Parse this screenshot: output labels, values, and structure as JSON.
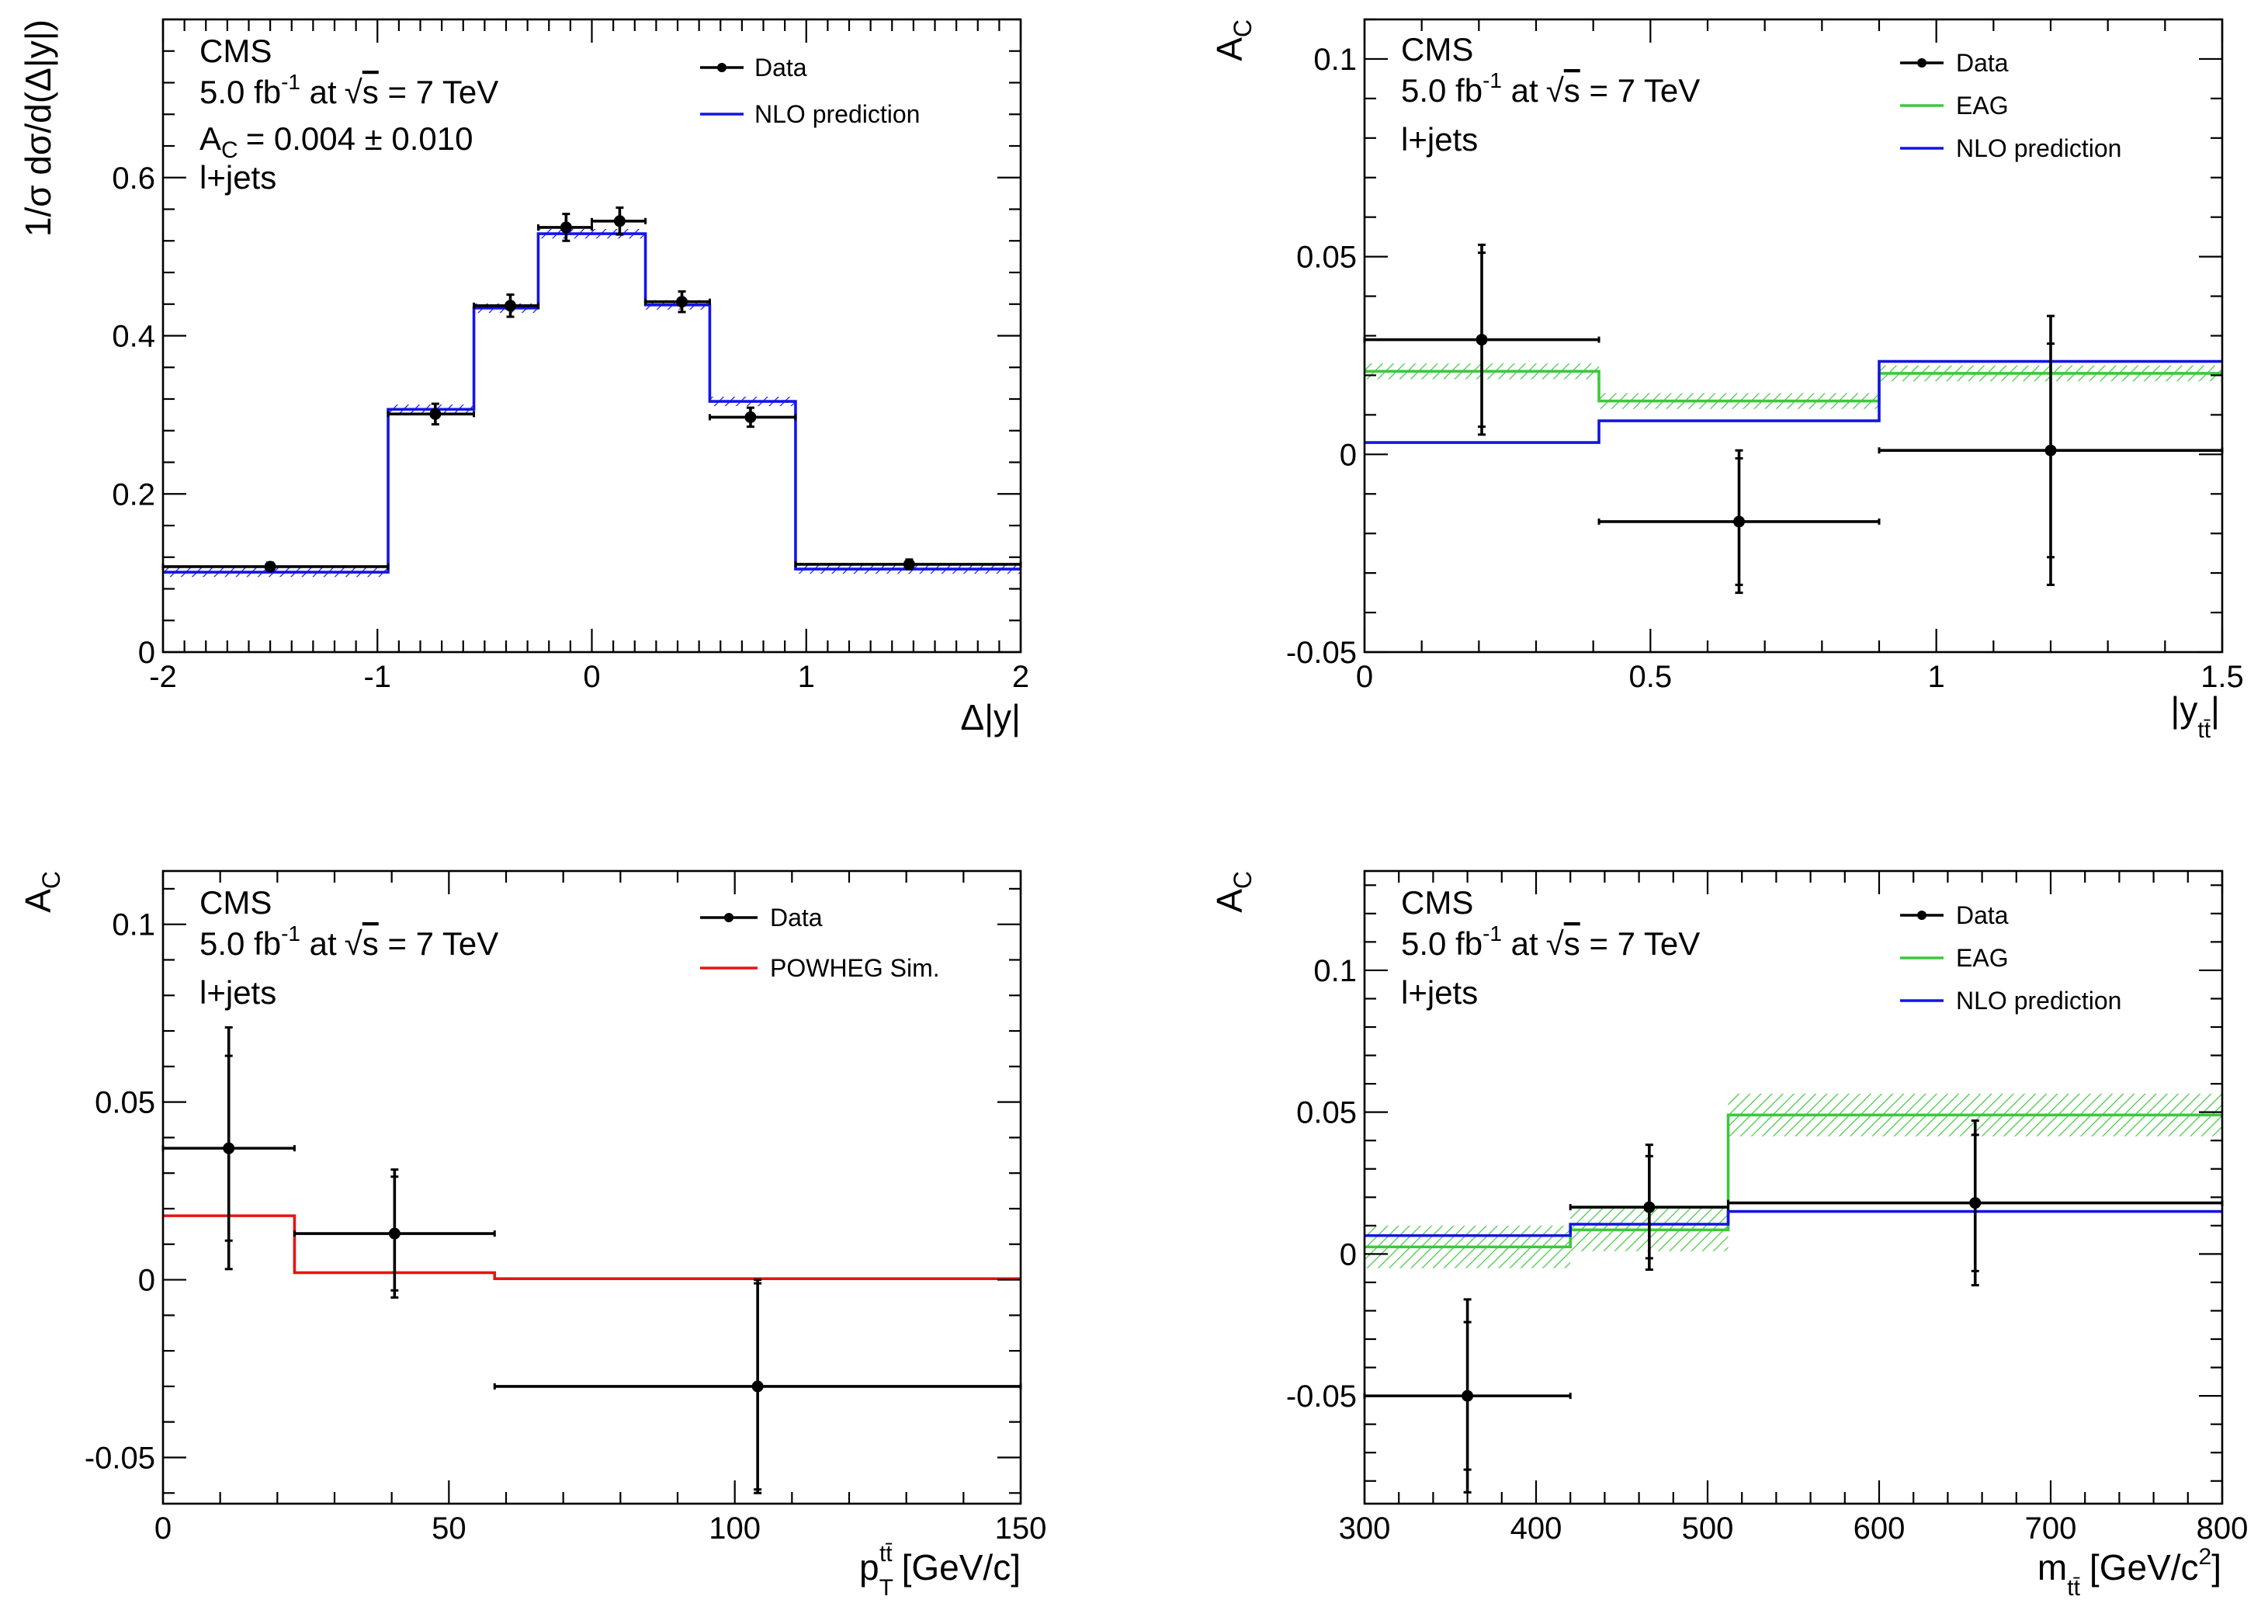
{
  "chart_data": [
    {
      "type": "histogram",
      "xlabel": "Δ|y|",
      "ylabel": "1/σ dσ/d(Δ|y|)",
      "xlim": [
        -2,
        2
      ],
      "ylim": [
        0,
        0.8
      ],
      "xticks": [
        "-2",
        "-1",
        "0",
        "1",
        "2"
      ],
      "yticks": [
        "0",
        "0.2",
        "0.4",
        "0.6"
      ],
      "ytick_values": [
        0,
        0.2,
        0.4,
        0.6
      ],
      "grid": false,
      "legend_position": "top-right",
      "text": {
        "line1": "CMS",
        "lumi": "5.0 fb",
        "lumi_sup": "-1",
        "energy_pre": "at",
        "energy_root": "s",
        "energy_post": "= 7 TeV",
        "ac_a": "A",
        "ac_sub": "C",
        "ac_val": "= 0.004 ± 0.010",
        "channel": "l+jets"
      },
      "bin_edges": [
        -2,
        -0.95,
        -0.55,
        -0.25,
        0,
        0.25,
        0.55,
        0.95,
        2
      ],
      "series": [
        {
          "name": "Data",
          "kind": "points",
          "color": "#000000",
          "x": [
            -1.5,
            -0.73,
            -0.38,
            -0.12,
            0.13,
            0.42,
            0.74,
            1.48
          ],
          "y": [
            0.108,
            0.301,
            0.438,
            0.537,
            0.545,
            0.443,
            0.297,
            0.111
          ],
          "err": [
            0.005,
            0.013,
            0.014,
            0.017,
            0.017,
            0.013,
            0.012,
            0.006
          ]
        },
        {
          "name": "NLO prediction",
          "kind": "step",
          "color": "#1414e6",
          "values": [
            0.101,
            0.307,
            0.435,
            0.529,
            0.529,
            0.439,
            0.317,
            0.105
          ],
          "band": 0.006
        }
      ]
    },
    {
      "type": "histogram",
      "xlabel": "|y",
      "xlabel_sub": "tt̄",
      "xlabel_close": "|",
      "ylabel": "A",
      "ylabel_sub": "C",
      "xlim": [
        0,
        1.5
      ],
      "ylim": [
        -0.05,
        0.11
      ],
      "xticks": [
        "0",
        "0.5",
        "1",
        "1.5"
      ],
      "xtick_values": [
        0,
        0.5,
        1,
        1.5
      ],
      "yticks": [
        "-0.05",
        "0",
        "0.05",
        "0.1"
      ],
      "ytick_values": [
        -0.05,
        0,
        0.05,
        0.1
      ],
      "grid": false,
      "legend_position": "top-right",
      "text": {
        "line1": "CMS",
        "lumi": "5.0 fb",
        "lumi_sup": "-1",
        "energy_pre": "at",
        "energy_root": "s",
        "energy_post": "= 7 TeV",
        "channel": "l+jets"
      },
      "bin_edges": [
        0,
        0.41,
        0.9,
        1.5
      ],
      "series": [
        {
          "name": "Data",
          "kind": "points",
          "color": "#000000",
          "x": [
            0.205,
            0.655,
            1.2
          ],
          "y": [
            0.029,
            -0.017,
            0.001
          ],
          "err": [
            0.024,
            0.018,
            0.034
          ],
          "err_stat": [
            0.022,
            0.016,
            0.027
          ]
        },
        {
          "name": "EAG",
          "kind": "step",
          "color": "#3cc83c",
          "values": [
            0.021,
            0.0135,
            0.0205
          ],
          "band": 0.002
        },
        {
          "name": "NLO prediction",
          "kind": "step",
          "color": "#1414e6",
          "values": [
            0.003,
            0.0085,
            0.0235
          ]
        }
      ]
    },
    {
      "type": "histogram",
      "xlabel": "p",
      "xlabel_sub": "T",
      "xlabel_sup": "tt̄",
      "xlabel_unit": "[GeV/c]",
      "ylabel": "A",
      "ylabel_sub": "C",
      "xlim": [
        0,
        150
      ],
      "ylim": [
        -0.063,
        0.115
      ],
      "xticks": [
        "0",
        "50",
        "100",
        "150"
      ],
      "xtick_values": [
        0,
        50,
        100,
        150
      ],
      "yticks": [
        "-0.05",
        "0",
        "0.05",
        "0.1"
      ],
      "ytick_values": [
        -0.05,
        0,
        0.05,
        0.1
      ],
      "grid": false,
      "legend_position": "top-right",
      "text": {
        "line1": "CMS",
        "lumi": "5.0 fb",
        "lumi_sup": "-1",
        "energy_pre": "at",
        "energy_root": "s",
        "energy_post": "= 7 TeV",
        "channel": "l+jets"
      },
      "bin_edges": [
        0,
        23,
        58,
        150
      ],
      "series": [
        {
          "name": "Data",
          "kind": "points",
          "color": "#000000",
          "x": [
            11.5,
            40.5,
            104
          ],
          "y": [
            0.037,
            0.013,
            -0.03
          ],
          "err": [
            0.034,
            0.018,
            0.03
          ],
          "err_stat": [
            0.026,
            0.016,
            0.029
          ]
        },
        {
          "name": "POWHEG Sim.",
          "kind": "step",
          "color": "#e61414",
          "values": [
            0.018,
            0.002,
            0.0003
          ]
        }
      ]
    },
    {
      "type": "histogram",
      "xlabel": "m",
      "xlabel_sub": "tt̄",
      "xlabel_unit": "[GeV/c",
      "xlabel_unit_sup": "2",
      "xlabel_unit_close": "]",
      "ylabel": "A",
      "ylabel_sub": "C",
      "xlim": [
        300,
        800
      ],
      "ylim": [
        -0.088,
        0.135
      ],
      "xticks": [
        "300",
        "400",
        "500",
        "600",
        "700",
        "800"
      ],
      "xtick_values": [
        300,
        400,
        500,
        600,
        700,
        800
      ],
      "yticks": [
        "-0.05",
        "0",
        "0.05",
        "0.1"
      ],
      "ytick_values": [
        -0.05,
        0,
        0.05,
        0.1
      ],
      "grid": false,
      "legend_position": "top-right",
      "text": {
        "line1": "CMS",
        "lumi": "5.0 fb",
        "lumi_sup": "-1",
        "energy_pre": "at",
        "energy_root": "s",
        "energy_post": "= 7 TeV",
        "channel": "l+jets"
      },
      "bin_edges": [
        300,
        420,
        512,
        800
      ],
      "series": [
        {
          "name": "Data",
          "kind": "points",
          "color": "#000000",
          "x": [
            360,
            466,
            656
          ],
          "y": [
            -0.05,
            0.0165,
            0.018
          ],
          "err": [
            0.034,
            0.022,
            0.029
          ],
          "err_stat": [
            0.026,
            0.018,
            0.024
          ]
        },
        {
          "name": "EAG",
          "kind": "step",
          "color": "#3cc83c",
          "values": [
            0.0025,
            0.0085,
            0.049
          ],
          "band": 0.0075
        },
        {
          "name": "NLO prediction",
          "kind": "step",
          "color": "#1414e6",
          "values": [
            0.0065,
            0.0105,
            0.015
          ]
        }
      ]
    }
  ]
}
